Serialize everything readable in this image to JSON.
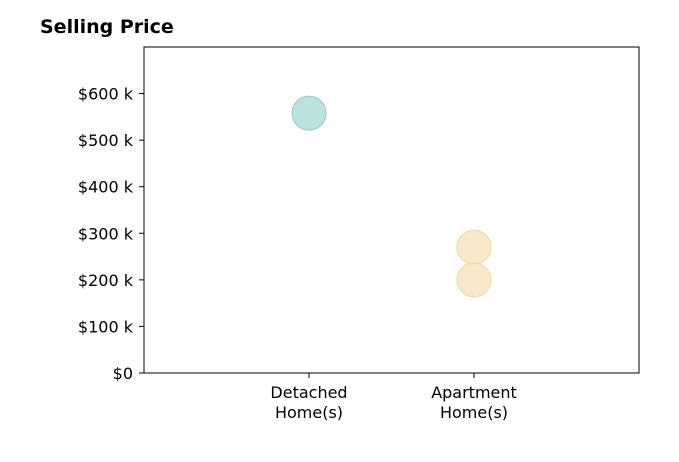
{
  "chart_data": {
    "type": "scatter",
    "title": "Selling Price",
    "xlabel": "",
    "ylabel": "",
    "categories": [
      "Detached\nHome(s)",
      "Apartment\nHome(s)"
    ],
    "xlim": [
      0,
      3
    ],
    "ylim": [
      0,
      700000
    ],
    "y_ticks": [
      {
        "value": 0,
        "label": "$0"
      },
      {
        "value": 100000,
        "label": "$100 k"
      },
      {
        "value": 200000,
        "label": "$200 k"
      },
      {
        "value": 300000,
        "label": "$300 k"
      },
      {
        "value": 400000,
        "label": "$400 k"
      },
      {
        "value": 500000,
        "label": "$500 k"
      },
      {
        "value": 600000,
        "label": "$600 k"
      }
    ],
    "grid": false,
    "series": [
      {
        "category": "Detached\nHome(s)",
        "color": "#a6d8d4",
        "edge_color": "#8ccac4",
        "points": [
          {
            "x": 1,
            "y": 558000
          }
        ]
      },
      {
        "category": "Apartment\nHome(s)",
        "color": "#f5e1b9",
        "edge_color": "#eed6a2",
        "points": [
          {
            "x": 2,
            "y": 270000
          },
          {
            "x": 2,
            "y": 200000
          }
        ]
      }
    ]
  }
}
